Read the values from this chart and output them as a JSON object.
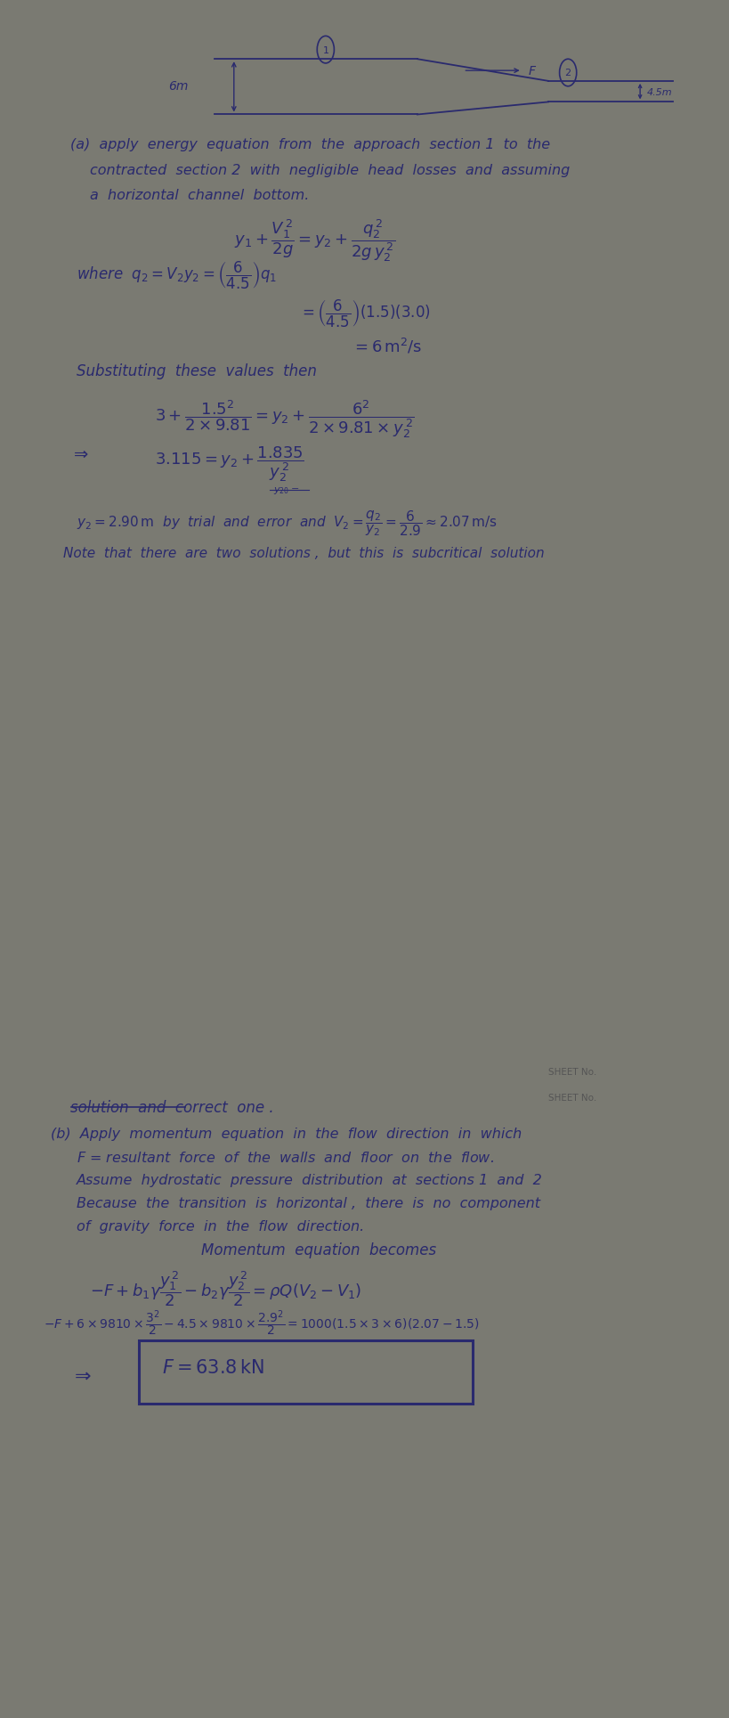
{
  "ink_color": "#2a2a6e",
  "fig_width": 8.0,
  "fig_height": 19.65,
  "dpi": 100,
  "bg_dark": "#7a7a72",
  "bg_paper1": "#e4e2db",
  "bg_paper2": "#dddbd4",
  "bg_paper1b": "#cccac4",
  "gap_color": "#555550",
  "sheet_label_color": "#555555"
}
